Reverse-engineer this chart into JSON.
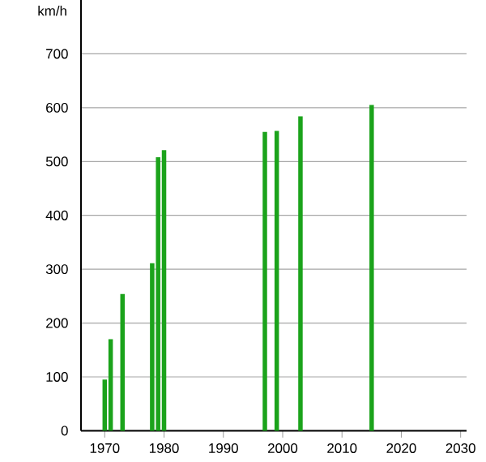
{
  "chart_data": {
    "type": "bar",
    "ylabel": "km/h",
    "x": [
      1970,
      1971,
      1973,
      1978,
      1979,
      1980,
      1997,
      1999,
      2003,
      2015
    ],
    "values": [
      95,
      170,
      254,
      311,
      508,
      521,
      555,
      557,
      584,
      605
    ],
    "color": "#1ba31b",
    "xlim": [
      1966,
      2031
    ],
    "xticks": [
      1970,
      1980,
      1990,
      2000,
      2010,
      2020,
      2030
    ],
    "ylim": [
      0,
      800
    ],
    "yticks": [
      0,
      100,
      200,
      300,
      400,
      500,
      600,
      700
    ],
    "grid": "y"
  }
}
